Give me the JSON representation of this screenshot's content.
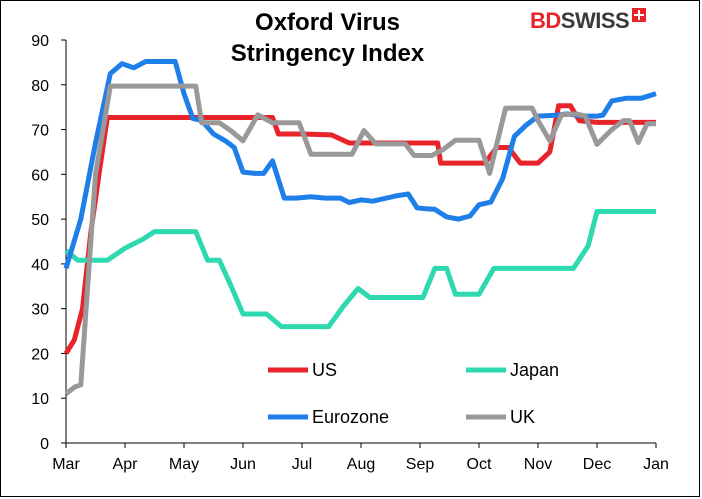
{
  "chart_data": {
    "type": "line",
    "title": "Oxford Virus\nStringency Index",
    "xlabel": "",
    "ylabel": "",
    "ylim": [
      0,
      90
    ],
    "yticks": [
      0,
      10,
      20,
      30,
      40,
      50,
      60,
      70,
      80,
      90
    ],
    "xticks": [
      "Mar",
      "Apr",
      "May",
      "Jun",
      "Jul",
      "Aug",
      "Sep",
      "Oct",
      "Nov",
      "Dec",
      "Jan"
    ],
    "xlim": [
      0,
      10
    ],
    "grid": false,
    "legend_placement": "bottom-center",
    "series": [
      {
        "name": "US",
        "color": "#e8232a",
        "points": [
          [
            0.0,
            20
          ],
          [
            0.14,
            23
          ],
          [
            0.28,
            30
          ],
          [
            0.42,
            47
          ],
          [
            0.56,
            60
          ],
          [
            0.7,
            72.7
          ],
          [
            1.0,
            72.7
          ],
          [
            2.0,
            72.7
          ],
          [
            3.0,
            72.7
          ],
          [
            3.5,
            72.7
          ],
          [
            3.6,
            69
          ],
          [
            4.0,
            69
          ],
          [
            4.5,
            68.8
          ],
          [
            4.8,
            67
          ],
          [
            5.0,
            67
          ],
          [
            5.5,
            67
          ],
          [
            6.0,
            67
          ],
          [
            6.3,
            67
          ],
          [
            6.35,
            62.5
          ],
          [
            6.6,
            62.5
          ],
          [
            7.0,
            62.5
          ],
          [
            7.1,
            62.5
          ],
          [
            7.3,
            66
          ],
          [
            7.5,
            66
          ],
          [
            7.7,
            62.5
          ],
          [
            8.0,
            62.5
          ],
          [
            8.2,
            65
          ],
          [
            8.35,
            75.3
          ],
          [
            8.55,
            75.3
          ],
          [
            8.7,
            72
          ],
          [
            9.0,
            71.6
          ],
          [
            9.5,
            71.6
          ],
          [
            10.0,
            71.6
          ]
        ]
      },
      {
        "name": "Japan",
        "color": "#2fd9b0",
        "points": [
          [
            0.0,
            43
          ],
          [
            0.2,
            40.8
          ],
          [
            0.5,
            40.8
          ],
          [
            0.7,
            40.8
          ],
          [
            1.0,
            43.5
          ],
          [
            1.3,
            45.5
          ],
          [
            1.5,
            47.2
          ],
          [
            2.0,
            47.2
          ],
          [
            2.2,
            47.2
          ],
          [
            2.4,
            40.8
          ],
          [
            2.6,
            40.8
          ],
          [
            2.8,
            35
          ],
          [
            3.0,
            28.8
          ],
          [
            3.4,
            28.8
          ],
          [
            3.65,
            26
          ],
          [
            4.0,
            26
          ],
          [
            4.45,
            26
          ],
          [
            4.7,
            30.5
          ],
          [
            4.95,
            34.5
          ],
          [
            5.15,
            32.5
          ],
          [
            5.5,
            32.5
          ],
          [
            5.8,
            32.5
          ],
          [
            6.05,
            32.5
          ],
          [
            6.25,
            39
          ],
          [
            6.45,
            39
          ],
          [
            6.6,
            33.2
          ],
          [
            6.8,
            33.2
          ],
          [
            7.0,
            33.2
          ],
          [
            7.25,
            39
          ],
          [
            7.5,
            39
          ],
          [
            8.0,
            39
          ],
          [
            8.5,
            39
          ],
          [
            8.6,
            39
          ],
          [
            8.85,
            44
          ],
          [
            9.0,
            51.7
          ],
          [
            9.5,
            51.7
          ],
          [
            10.0,
            51.7
          ]
        ]
      },
      {
        "name": "Eurozone",
        "color": "#1f7fe8",
        "points": [
          [
            0.0,
            39
          ],
          [
            0.25,
            50
          ],
          [
            0.5,
            67
          ],
          [
            0.75,
            82.5
          ],
          [
            0.95,
            84.7
          ],
          [
            1.15,
            83.8
          ],
          [
            1.35,
            85.2
          ],
          [
            1.7,
            85.2
          ],
          [
            1.85,
            85.2
          ],
          [
            2.0,
            78
          ],
          [
            2.15,
            72.5
          ],
          [
            2.3,
            72
          ],
          [
            2.5,
            69
          ],
          [
            2.7,
            67.5
          ],
          [
            2.85,
            66
          ],
          [
            3.0,
            60.5
          ],
          [
            3.2,
            60.2
          ],
          [
            3.35,
            60.2
          ],
          [
            3.5,
            63
          ],
          [
            3.7,
            54.7
          ],
          [
            3.9,
            54.7
          ],
          [
            4.15,
            55
          ],
          [
            4.4,
            54.7
          ],
          [
            4.65,
            54.7
          ],
          [
            4.8,
            53.7
          ],
          [
            5.0,
            54.3
          ],
          [
            5.2,
            54
          ],
          [
            5.4,
            54.6
          ],
          [
            5.6,
            55.2
          ],
          [
            5.8,
            55.6
          ],
          [
            5.95,
            52.5
          ],
          [
            6.1,
            52.3
          ],
          [
            6.25,
            52.2
          ],
          [
            6.45,
            50.5
          ],
          [
            6.65,
            50
          ],
          [
            6.85,
            50.7
          ],
          [
            7.0,
            53.2
          ],
          [
            7.2,
            53.8
          ],
          [
            7.4,
            59
          ],
          [
            7.6,
            68.5
          ],
          [
            7.8,
            71
          ],
          [
            8.0,
            73
          ],
          [
            8.3,
            73.2
          ],
          [
            8.5,
            73.5
          ],
          [
            8.75,
            73
          ],
          [
            9.0,
            73
          ],
          [
            9.1,
            73.2
          ],
          [
            9.25,
            76.4
          ],
          [
            9.5,
            77
          ],
          [
            9.75,
            77
          ],
          [
            10.0,
            78
          ]
        ]
      },
      {
        "name": "UK",
        "color": "#999999",
        "points": [
          [
            0.0,
            11
          ],
          [
            0.15,
            12.5
          ],
          [
            0.25,
            13
          ],
          [
            0.5,
            60
          ],
          [
            0.75,
            79.7
          ],
          [
            1.0,
            79.7
          ],
          [
            1.5,
            79.7
          ],
          [
            2.0,
            79.7
          ],
          [
            2.2,
            79.7
          ],
          [
            2.3,
            71.5
          ],
          [
            2.6,
            71.5
          ],
          [
            2.8,
            69.7
          ],
          [
            3.0,
            67.5
          ],
          [
            3.25,
            73.3
          ],
          [
            3.5,
            71.5
          ],
          [
            3.8,
            71.5
          ],
          [
            3.95,
            71.5
          ],
          [
            4.15,
            64.5
          ],
          [
            4.5,
            64.5
          ],
          [
            4.85,
            64.5
          ],
          [
            5.05,
            69.8
          ],
          [
            5.25,
            66.8
          ],
          [
            5.5,
            66.8
          ],
          [
            5.75,
            66.8
          ],
          [
            5.9,
            64.2
          ],
          [
            6.2,
            64.2
          ],
          [
            6.4,
            65.6
          ],
          [
            6.6,
            67.6
          ],
          [
            6.85,
            67.6
          ],
          [
            7.0,
            67.6
          ],
          [
            7.18,
            60.2
          ],
          [
            7.45,
            74.8
          ],
          [
            7.75,
            74.8
          ],
          [
            7.9,
            74.8
          ],
          [
            8.0,
            72
          ],
          [
            8.2,
            67.5
          ],
          [
            8.4,
            73.3
          ],
          [
            8.65,
            73.5
          ],
          [
            8.8,
            73
          ],
          [
            9.0,
            66.7
          ],
          [
            9.25,
            70
          ],
          [
            9.45,
            72
          ],
          [
            9.55,
            72
          ],
          [
            9.7,
            67.1
          ],
          [
            9.85,
            71.3
          ],
          [
            10.0,
            71.3
          ]
        ]
      }
    ]
  },
  "brand": {
    "logo_text_red": "BD",
    "logo_text_dark": "SWISS",
    "accent_color": "#e8232a"
  }
}
